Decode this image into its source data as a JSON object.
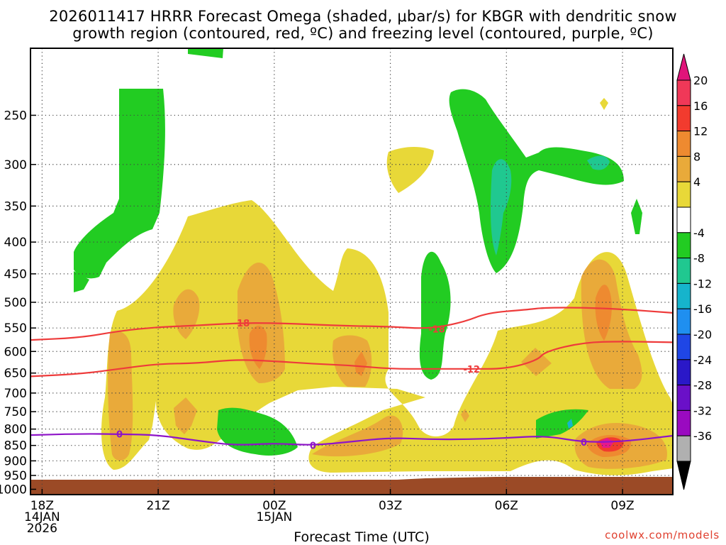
{
  "title": {
    "line1": "2026011417 HRRR Forecast Omega (shaded, μbar/s) for KBGR with dendritic snow",
    "line2": "growth region (contoured, red, ºC) and freezing level (contoured, purple, ºC)"
  },
  "credit": "coolwx.com/models",
  "chart_data": {
    "type": "heatmap",
    "model": "HRRR",
    "init": "2026011417",
    "station": "KBGR",
    "title": "2026011417 HRRR Forecast Omega (shaded, μbar/s) for KBGR with dendritic snow growth region (contoured, red, ºC) and freezing level (contoured, purple, ºC)",
    "xlabel": "Forecast Time (UTC)",
    "ylabel": "",
    "x_range_hours": [
      -0.3,
      16.3
    ],
    "y_range_hpa": [
      1020,
      195
    ],
    "y_ticks": [
      250,
      300,
      350,
      400,
      450,
      500,
      550,
      600,
      650,
      700,
      750,
      800,
      850,
      900,
      950,
      1000
    ],
    "x_ticks": [
      {
        "hour": 0,
        "lines": [
          "18Z",
          "14JAN",
          "2026"
        ]
      },
      {
        "hour": 3,
        "lines": [
          "21Z"
        ]
      },
      {
        "hour": 6,
        "lines": [
          "00Z",
          "15JAN"
        ]
      },
      {
        "hour": 9,
        "lines": [
          "03Z"
        ]
      },
      {
        "hour": 12,
        "lines": [
          "06Z"
        ]
      },
      {
        "hour": 15,
        "lines": [
          "09Z"
        ]
      }
    ],
    "colorbar": {
      "labels": [
        "20",
        "16",
        "12",
        "8",
        "4",
        "-4",
        "-8",
        "-12",
        "-16",
        "-20",
        "-24",
        "-28",
        "-32",
        "-36"
      ],
      "colors": [
        "#f03858",
        "#f23b2e",
        "#ee8a30",
        "#e9aa3a",
        "#e8d838",
        "#ffffff",
        "#22cc22",
        "#20c890",
        "#16b4cc",
        "#1f8ff0",
        "#1f46e6",
        "#2a18c8",
        "#6a10c8",
        "#9a0ac0",
        "#b0b0b0"
      ],
      "top_arrow_color": "#e0147a",
      "bottom_arrow_color": "#000000"
    },
    "fills": {
      "green": "#22cc22",
      "teal": "#20c890",
      "cyan": "#16b4cc",
      "yellow": "#e8d838",
      "orange_light": "#e9aa3a",
      "orange": "#ee8a30",
      "red": "#f23b2e",
      "magenta": "#e8188a",
      "ground": "#9b4a26"
    },
    "series": [
      {
        "name": "-18 C isotherm (dendritic growth top)",
        "label": "-18",
        "color": "#ee3b3b",
        "points": [
          [
            -0.3,
            575
          ],
          [
            1,
            570
          ],
          [
            2,
            556
          ],
          [
            3,
            548
          ],
          [
            4,
            545
          ],
          [
            5,
            540
          ],
          [
            6,
            540
          ],
          [
            7,
            543
          ],
          [
            8,
            546
          ],
          [
            9,
            547
          ],
          [
            10,
            552
          ],
          [
            10.9,
            538
          ],
          [
            11.5,
            520
          ],
          [
            12.5,
            514
          ],
          [
            13,
            510
          ],
          [
            14,
            510
          ],
          [
            15,
            513
          ],
          [
            16.3,
            520
          ]
        ],
        "label_at": [
          [
            5.15,
            540
          ],
          [
            10.2,
            552
          ]
        ]
      },
      {
        "name": "-12 C isotherm (dendritic growth bottom)",
        "label": "-12",
        "color": "#ee3b3b",
        "points": [
          [
            -0.3,
            658
          ],
          [
            1,
            652
          ],
          [
            2,
            640
          ],
          [
            3,
            628
          ],
          [
            4,
            627
          ],
          [
            5,
            618
          ],
          [
            6,
            622
          ],
          [
            7,
            628
          ],
          [
            8,
            632
          ],
          [
            9,
            640
          ],
          [
            10,
            640
          ],
          [
            11,
            640
          ],
          [
            12,
            640
          ],
          [
            12.8,
            620
          ],
          [
            13,
            600
          ],
          [
            14,
            580
          ],
          [
            15,
            578
          ],
          [
            16.3,
            580
          ]
        ],
        "label_at": [
          [
            11.1,
            640
          ]
        ]
      },
      {
        "name": "0 C freezing level",
        "label": "0",
        "color": "#8e14c8",
        "points": [
          [
            -0.3,
            818
          ],
          [
            1,
            814
          ],
          [
            2,
            815
          ],
          [
            3,
            818
          ],
          [
            4,
            835
          ],
          [
            5,
            850
          ],
          [
            6,
            843
          ],
          [
            7,
            850
          ],
          [
            8,
            838
          ],
          [
            9,
            826
          ],
          [
            10,
            831
          ],
          [
            11,
            831
          ],
          [
            12,
            827
          ],
          [
            13,
            820
          ],
          [
            14,
            840
          ],
          [
            15,
            838
          ],
          [
            16.3,
            820
          ]
        ],
        "label_at": [
          [
            2.0,
            815
          ],
          [
            7.0,
            850
          ],
          [
            14.0,
            840
          ]
        ]
      }
    ]
  },
  "axes": {
    "xlabel": "Forecast Time (UTC)",
    "ylabel": ""
  }
}
